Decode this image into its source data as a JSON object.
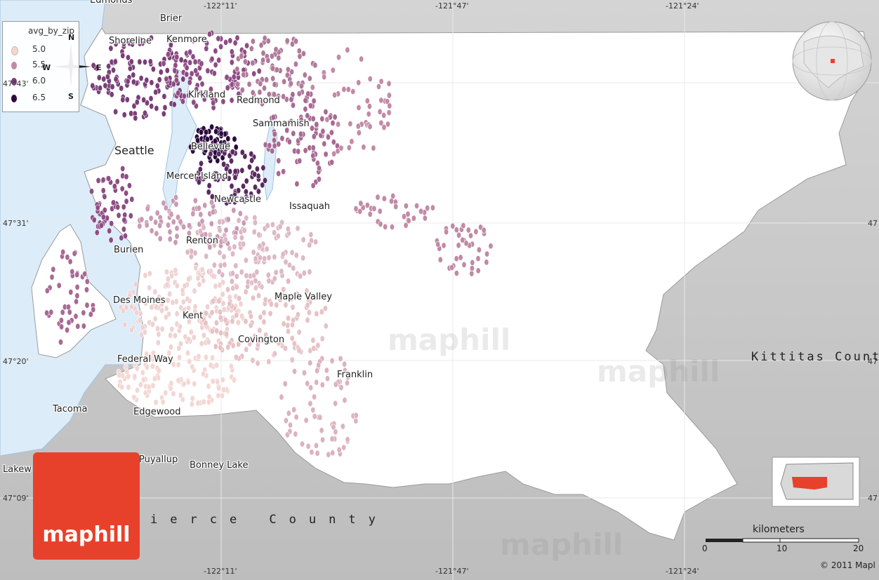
{
  "map": {
    "colors": {
      "background_land": "#c9c9c9",
      "county": "#ffffff",
      "water": "#dcecf8",
      "accent": "#e8412b"
    },
    "legend": {
      "title": "avg_by_zip",
      "items": [
        {
          "label": "5.0",
          "color": "#f3d7d3"
        },
        {
          "label": "5.5",
          "color": "#c38aa6"
        },
        {
          "label": "6.0",
          "color": "#7a3f78"
        },
        {
          "label": "6.5",
          "color": "#2b0a3d"
        }
      ]
    },
    "compass": {
      "n": "N",
      "s": "S",
      "e": "E",
      "w": "W"
    },
    "top_labels": [
      "Edmonds",
      "Brier"
    ],
    "cities": [
      "Shoreline",
      "Kenmore",
      "Kirkland",
      "Redmond",
      "Sammamish",
      "Seattle",
      "Bellevue",
      "Mercer Island",
      "Newcastle",
      "Issaquah",
      "Burien",
      "Renton",
      "Des Moines",
      "Maple Valley",
      "Kent",
      "Covington",
      "Federal Way",
      "Franklin",
      "Tacoma",
      "Edgewood",
      "Puyallup",
      "Bonney Lake",
      "Lakew"
    ],
    "coords_top": [
      "-122°11'",
      "-121°47'",
      "-121°24'"
    ],
    "coords_bottom": [
      "-122°11'",
      "-121°47'",
      "-121°24'"
    ],
    "coords_left": [
      "47°43'",
      "47°31'",
      "47°20'",
      "47°09'"
    ],
    "coords_right": [
      "47",
      "47",
      "47"
    ],
    "counties": {
      "east": "Kittitas Count",
      "south": "ierce County"
    },
    "watermark": "maphill",
    "logo": "maphill",
    "scale": {
      "title": "kilometers",
      "ticks": [
        "0",
        "10",
        "20"
      ]
    },
    "copyright": "© 2011 Mapl"
  }
}
